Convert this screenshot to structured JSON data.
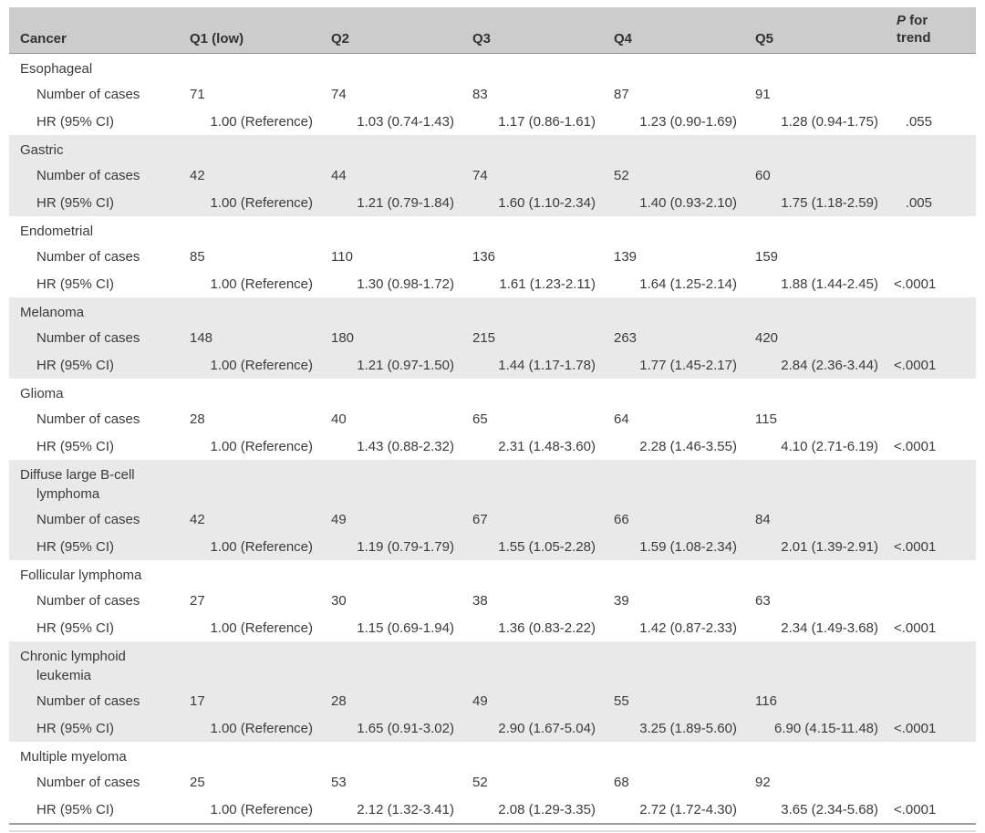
{
  "table": {
    "header": {
      "cancer": "Cancer",
      "quintiles": [
        "Q1 (low)",
        "Q2",
        "Q3",
        "Q4",
        "Q5"
      ],
      "p_italic": "P",
      "p_rest": " for",
      "p_line2": "trend"
    },
    "row_labels": {
      "cases": "Number of cases",
      "hr": "HR (95% CI)"
    },
    "colors": {
      "header_bg": "#cccccc",
      "band_bg": "#e9e9e9",
      "text": "#3b3b3b"
    },
    "groups": [
      {
        "name": "Esophageal",
        "cases": [
          "71",
          "74",
          "83",
          "87",
          "91"
        ],
        "hr": [
          "1.00 (Reference)",
          "1.03 (0.74-1.43)",
          "1.17 (0.86-1.61)",
          "1.23 (0.90-1.69)",
          "1.28 (0.94-1.75)"
        ],
        "p": ".055"
      },
      {
        "name": "Gastric",
        "cases": [
          "42",
          "44",
          "74",
          "52",
          "60"
        ],
        "hr": [
          "1.00 (Reference)",
          "1.21 (0.79-1.84)",
          "1.60 (1.10-2.34)",
          "1.40 (0.93-2.10)",
          "1.75 (1.18-2.59)"
        ],
        "p": ".005"
      },
      {
        "name": "Endometrial",
        "cases": [
          "85",
          "110",
          "136",
          "139",
          "159"
        ],
        "hr": [
          "1.00 (Reference)",
          "1.30 (0.98-1.72)",
          "1.61 (1.23-2.11)",
          "1.64 (1.25-2.14)",
          "1.88 (1.44-2.45)"
        ],
        "p": "<.0001"
      },
      {
        "name": "Melanoma",
        "cases": [
          "148",
          "180",
          "215",
          "263",
          "420"
        ],
        "hr": [
          "1.00 (Reference)",
          "1.21 (0.97-1.50)",
          "1.44 (1.17-1.78)",
          "1.77 (1.45-2.17)",
          "2.84 (2.36-3.44)"
        ],
        "p": "<.0001"
      },
      {
        "name": "Glioma",
        "cases": [
          "28",
          "40",
          "65",
          "64",
          "115"
        ],
        "hr": [
          "1.00 (Reference)",
          "1.43 (0.88-2.32)",
          "2.31 (1.48-3.60)",
          "2.28 (1.46-3.55)",
          "4.10 (2.71-6.19)"
        ],
        "p": "<.0001"
      },
      {
        "name": "Diffuse large B-cell lymphoma",
        "cases": [
          "42",
          "49",
          "67",
          "66",
          "84"
        ],
        "hr": [
          "1.00 (Reference)",
          "1.19 (0.79-1.79)",
          "1.55 (1.05-2.28)",
          "1.59 (1.08-2.34)",
          "2.01 (1.39-2.91)"
        ],
        "p": "<.0001"
      },
      {
        "name": "Follicular lymphoma",
        "cases": [
          "27",
          "30",
          "38",
          "39",
          "63"
        ],
        "hr": [
          "1.00 (Reference)",
          "1.15 (0.69-1.94)",
          "1.36 (0.83-2.22)",
          "1.42 (0.87-2.33)",
          "2.34 (1.49-3.68)"
        ],
        "p": "<.0001"
      },
      {
        "name": "Chronic lymphoid leukemia",
        "cases": [
          "17",
          "28",
          "49",
          "55",
          "116"
        ],
        "hr": [
          "1.00 (Reference)",
          "1.65 (0.91-3.02)",
          "2.90 (1.67-5.04)",
          "3.25 (1.89-5.60)",
          "6.90 (4.15-11.48)"
        ],
        "p": "<.0001"
      },
      {
        "name": "Multiple myeloma",
        "cases": [
          "25",
          "53",
          "52",
          "68",
          "92"
        ],
        "hr": [
          "1.00 (Reference)",
          "2.12 (1.32-3.41)",
          "2.08 (1.29-3.35)",
          "2.72 (1.72-4.30)",
          "3.65 (2.34-5.68)"
        ],
        "p": "<.0001"
      }
    ]
  }
}
